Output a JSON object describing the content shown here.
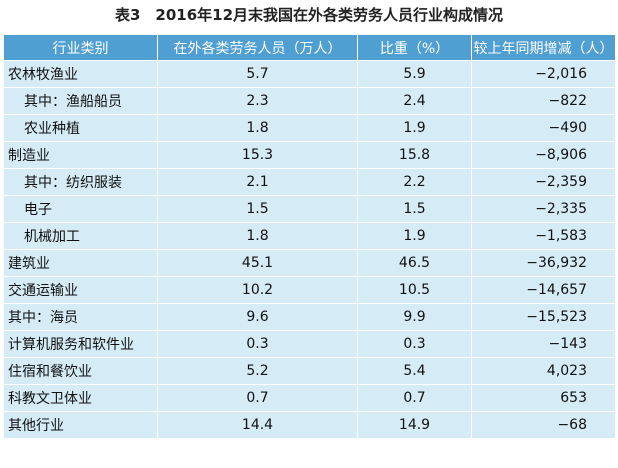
{
  "title": "表3　2016年12月末我国在外各类劳务人员行业构成情况",
  "table": {
    "headers": [
      "行业类别",
      "在外各类劳务人员（万人）",
      "比重（%）",
      "较上年同期增减（人）"
    ],
    "rows": [
      [
        "农林牧渔业",
        "5.7",
        "5.9",
        "−2,016"
      ],
      [
        "其中：渔船船员",
        "2.3",
        "2.4",
        "−822"
      ],
      [
        "农业种植",
        "1.8",
        "1.9",
        "−490"
      ],
      [
        "制造业",
        "15.3",
        "15.8",
        "−8,906"
      ],
      [
        "其中：纺织服装",
        "2.1",
        "2.2",
        "−2,359"
      ],
      [
        "电子",
        "1.5",
        "1.5",
        "−2,335"
      ],
      [
        "机械加工",
        "1.8",
        "1.9",
        "−1,583"
      ],
      [
        "建筑业",
        "45.1",
        "46.5",
        "−36,932"
      ],
      [
        "交通运输业",
        "10.2",
        "10.5",
        "−14,657"
      ],
      [
        "其中：海员",
        "9.6",
        "9.9",
        "−15,523"
      ],
      [
        "计算机服务和软件业",
        "0.3",
        "0.3",
        "−143"
      ],
      [
        "住宿和餐饮业",
        "5.2",
        "5.4",
        "4,023"
      ],
      [
        "科教文卫体业",
        "0.7",
        "0.7",
        "653"
      ],
      [
        "其他行业",
        "14.4",
        "14.9",
        "−68"
      ]
    ]
  }
}
